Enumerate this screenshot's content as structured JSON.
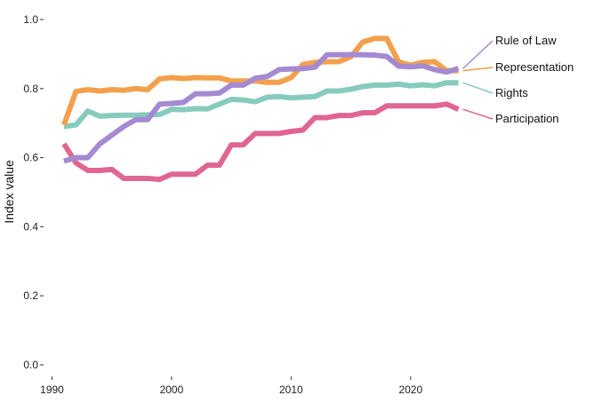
{
  "chart_data": {
    "type": "line",
    "title": "",
    "xlabel": "",
    "ylabel": "Index value",
    "xlim": [
      1990,
      2034
    ],
    "ylim": [
      0.0,
      1.0
    ],
    "x_ticks": [
      1990,
      2000,
      2010,
      2020
    ],
    "y_ticks": [
      "0.0",
      "0.2",
      "0.4",
      "0.6",
      "0.8",
      "1.0"
    ],
    "grid": false,
    "legend": "direct labels at line ends",
    "x": [
      1991,
      1992,
      1993,
      1994,
      1995,
      1996,
      1997,
      1998,
      1999,
      2000,
      2001,
      2002,
      2003,
      2004,
      2005,
      2006,
      2007,
      2008,
      2009,
      2010,
      2011,
      2012,
      2013,
      2014,
      2015,
      2016,
      2017,
      2018,
      2019,
      2020,
      2021,
      2022,
      2023,
      2024
    ],
    "series": [
      {
        "name": "Rule of Law",
        "color": "#a48ad0",
        "values": [
          0.59,
          0.6,
          0.6,
          0.64,
          0.665,
          0.69,
          0.71,
          0.71,
          0.755,
          0.757,
          0.76,
          0.785,
          0.785,
          0.787,
          0.81,
          0.81,
          0.83,
          0.835,
          0.855,
          0.857,
          0.858,
          0.862,
          0.898,
          0.898,
          0.898,
          0.898,
          0.897,
          0.893,
          0.865,
          0.863,
          0.866,
          0.855,
          0.848,
          0.858
        ]
      },
      {
        "name": "Representation",
        "color": "#f3a04d",
        "values": [
          0.695,
          0.792,
          0.797,
          0.793,
          0.797,
          0.795,
          0.8,
          0.797,
          0.828,
          0.832,
          0.829,
          0.832,
          0.831,
          0.831,
          0.822,
          0.822,
          0.822,
          0.818,
          0.818,
          0.832,
          0.87,
          0.876,
          0.878,
          0.878,
          0.892,
          0.935,
          0.945,
          0.945,
          0.877,
          0.868,
          0.876,
          0.878,
          0.852,
          0.852
        ]
      },
      {
        "name": "Rights",
        "color": "#86cbbe",
        "values": [
          0.69,
          0.695,
          0.735,
          0.72,
          0.722,
          0.723,
          0.723,
          0.724,
          0.725,
          0.74,
          0.739,
          0.742,
          0.741,
          0.755,
          0.769,
          0.767,
          0.762,
          0.775,
          0.777,
          0.773,
          0.775,
          0.777,
          0.793,
          0.793,
          0.798,
          0.806,
          0.81,
          0.81,
          0.813,
          0.808,
          0.811,
          0.808,
          0.817,
          0.817
        ]
      },
      {
        "name": "Participation",
        "color": "#e06691",
        "values": [
          0.64,
          0.585,
          0.563,
          0.563,
          0.566,
          0.54,
          0.54,
          0.54,
          0.537,
          0.552,
          0.552,
          0.552,
          0.578,
          0.578,
          0.637,
          0.637,
          0.67,
          0.67,
          0.67,
          0.676,
          0.68,
          0.716,
          0.716,
          0.722,
          0.722,
          0.73,
          0.73,
          0.75,
          0.75,
          0.75,
          0.75,
          0.75,
          0.755,
          0.74
        ]
      }
    ],
    "series_labels": [
      "Rule of Law",
      "Representation",
      "Rights",
      "Participation"
    ]
  }
}
